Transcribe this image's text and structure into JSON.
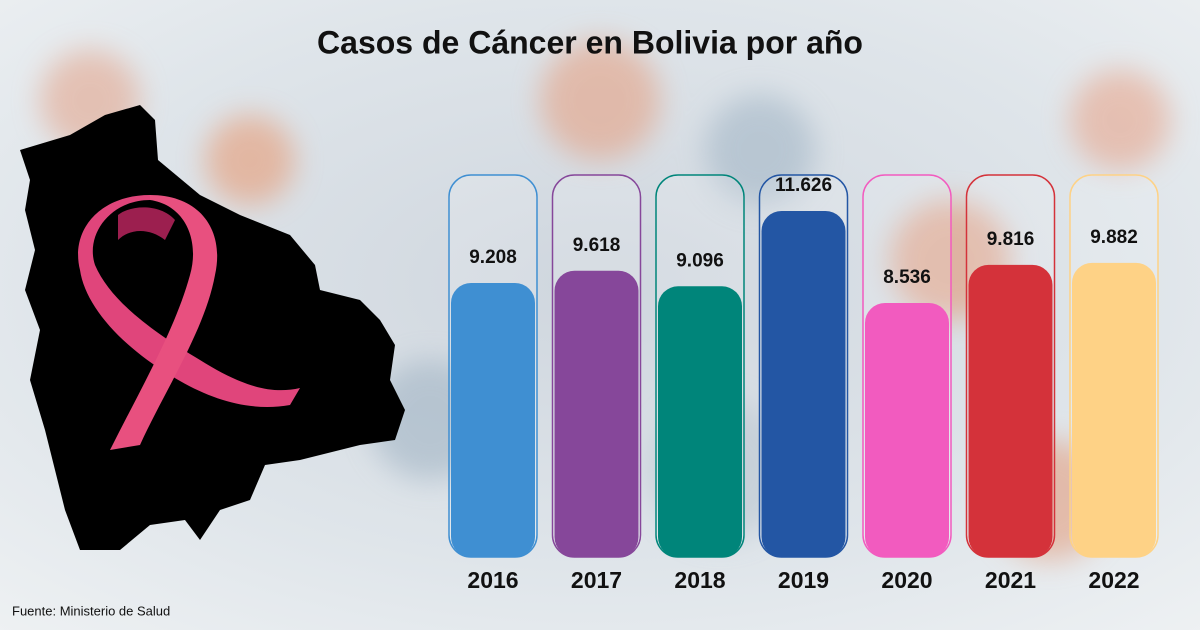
{
  "chart_data": {
    "type": "bar",
    "title": "Casos de Cáncer en Bolivia por año",
    "categories": [
      "2016",
      "2017",
      "2018",
      "2019",
      "2020",
      "2021",
      "2022"
    ],
    "values": [
      9208,
      9618,
      9096,
      11626,
      8536,
      9816,
      9882
    ],
    "value_labels": [
      "9.208",
      "9.618",
      "9.096",
      "11.626",
      "8.536",
      "9.816",
      "9.882"
    ],
    "colors": [
      "#3f8fd2",
      "#86479a",
      "#00857a",
      "#2356a4",
      "#f25bbf",
      "#d4323a",
      "#fed286"
    ],
    "source": "Fuente: Ministerio de Salud"
  }
}
